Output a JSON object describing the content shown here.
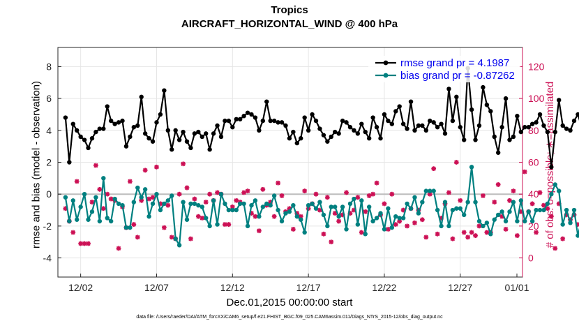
{
  "chart_data": {
    "type": "line",
    "title": "Tropics",
    "subtitle": "AIRCRAFT_HORIZONTAL_WIND @ 400 hPa",
    "xlabel": "Dec.01,2015 00:00:00 start",
    "ylabel_left": "rmse and bias (model - observation)",
    "ylabel_right": "# of obs: o=possible; ∗=assimilated",
    "footer": "data file: /Users/raeder/DAI/ATM_forcXX/CAM6_setup/f.e21.FHIST_BGC.f09_025.CAM6assim.011/Diags_NTrS_2015-12/obs_diag_output.nc",
    "xlim": [
      0.5,
      31.1
    ],
    "ylim_left": [
      -5.2,
      9.2
    ],
    "ylim_right": [
      -12,
      132
    ],
    "x_ticks": [
      2,
      7,
      12,
      17,
      22,
      27,
      32
    ],
    "x_tick_labels": [
      "12/02",
      "12/07",
      "12/12",
      "12/17",
      "12/22",
      "12/27",
      "01/01"
    ],
    "y_ticks_left": [
      -4,
      -2,
      0,
      2,
      4,
      6,
      8
    ],
    "y_ticks_right": [
      0,
      20,
      40,
      60,
      80,
      100,
      120
    ],
    "grid": true,
    "legend": {
      "placement": "top-right",
      "entries": [
        "rmse grand pr = 4.1987",
        "bias grand pr = -0.87262"
      ]
    },
    "x_start": 1,
    "x_step": 0.25,
    "series": [
      {
        "name": "rmse grand pr = 4.1987",
        "color": "#000000",
        "axis": "left",
        "values": [
          4.8,
          2.0,
          4.4,
          4.0,
          3.6,
          3.4,
          2.9,
          3.5,
          3.9,
          4.1,
          4.1,
          5.5,
          4.6,
          4.4,
          4.5,
          4.6,
          3.0,
          3.6,
          4.2,
          4.3,
          6.1,
          3.8,
          3.5,
          3.3,
          4.5,
          5.0,
          6.5,
          4.0,
          2.8,
          4.0,
          3.4,
          3.9,
          3.3,
          2.9,
          3.8,
          3.9,
          3.6,
          3.8,
          2.8,
          3.8,
          4.3,
          3.6,
          4.6,
          4.6,
          4.2,
          4.7,
          4.7,
          4.9,
          5.1,
          5.0,
          4.8,
          4.0,
          4.6,
          5.8,
          4.6,
          4.6,
          4.5,
          4.5,
          4.3,
          3.5,
          3.9,
          3.2,
          3.5,
          4.8,
          4.0,
          5.0,
          4.6,
          4.1,
          3.7,
          3.3,
          3.6,
          3.9,
          3.8,
          4.6,
          4.5,
          4.2,
          4.0,
          3.8,
          4.4,
          3.9,
          3.5,
          4.8,
          4.2,
          3.5,
          5.0,
          4.6,
          4.4,
          5.2,
          5.5,
          4.4,
          4.1,
          5.8,
          4.0,
          4.3,
          4.3,
          4.0,
          4.6,
          4.5,
          4.2,
          4.4,
          3.8,
          6.6,
          4.6,
          6.1,
          4.2,
          3.4,
          7.9,
          5.3,
          3.4,
          4.3,
          6.7,
          5.6,
          5.2,
          3.6,
          2.6,
          4.2,
          6.0,
          3.4,
          3.6,
          4.9,
          3.9,
          4.2,
          4.2,
          4.4,
          4.5,
          5.0,
          4.3,
          3.9,
          1.7,
          3.9,
          5.9,
          4.3,
          4.1,
          4.0,
          4.6,
          5.0,
          4.2,
          3.9,
          4.2,
          4.8,
          4.3,
          6.4,
          5.2
        ]
      },
      {
        "name": "bias grand pr = -0.87262",
        "color": "#008080",
        "axis": "left",
        "values": [
          -0.2,
          -1.7,
          -0.4,
          -1.6,
          -0.8,
          0.0,
          -1.6,
          -1.1,
          -0.2,
          -1.7,
          1.0,
          -1.5,
          -1.7,
          -0.3,
          -0.6,
          -0.7,
          -2.1,
          -2.1,
          -0.5,
          0.4,
          -0.2,
          0.3,
          -1.4,
          -0.6,
          0.0,
          -1.0,
          -0.6,
          -0.4,
          -0.1,
          -2.8,
          -3.2,
          -0.5,
          -1.6,
          -0.6,
          -0.6,
          -0.7,
          -0.8,
          -1.5,
          -2.0,
          -0.4,
          -1.9,
          0.0,
          -0.6,
          -1.0,
          -1.0,
          -1.0,
          -0.6,
          -0.6,
          -2.0,
          -0.7,
          -0.4,
          -1.4,
          -0.8,
          -0.6,
          -0.7,
          -0.1,
          -1.0,
          -1.7,
          -1.2,
          -1.1,
          -0.7,
          -1.4,
          -1.6,
          -2.4,
          -0.7,
          -0.6,
          -0.9,
          -0.5,
          -1.3,
          -2.0,
          -0.8,
          -0.8,
          -1.4,
          -0.8,
          -2.2,
          -0.6,
          -0.3,
          -1.9,
          -0.4,
          -2.5,
          -0.8,
          -1.7,
          -1.5,
          -1.2,
          -2.2,
          -0.9,
          -2.1,
          -1.4,
          -1.5,
          -1.5,
          -0.6,
          -0.9,
          -0.2,
          -1.2,
          -0.5,
          0.2,
          0.2,
          0.2,
          -1.0,
          -2.0,
          -0.5,
          -2.0,
          -1.0,
          -0.9,
          -0.9,
          -1.3,
          -0.5,
          1.7,
          -0.5,
          -1.7,
          -2.0,
          -1.8,
          -2.5,
          -1.6,
          -1.3,
          -1.1,
          -1.7,
          -1.1,
          -0.5,
          -1.7,
          -0.4,
          -1.7,
          -1.1,
          -1.7,
          -1.0,
          -1.0,
          -1.0,
          -0.6,
          0.0,
          0.6,
          0.2,
          -1.9,
          -1.0,
          -1.8,
          -1.0,
          -2.6,
          -1.6,
          -2.2,
          -1.3,
          -1.6,
          -1.2,
          -4.2,
          -1.3
        ]
      },
      {
        "name": "assimilated obs count",
        "color": "#cc1155",
        "axis": "right",
        "values": [
          31,
          23,
          16,
          48,
          9,
          9,
          9,
          35,
          58,
          43,
          31,
          40,
          37,
          36,
          6,
          32,
          19,
          48,
          21,
          13,
          36,
          55,
          37,
          38,
          57,
          34,
          19,
          33,
          13,
          12,
          40,
          59,
          44,
          12,
          37,
          26,
          25,
          35,
          40,
          36,
          41,
          40,
          21,
          21,
          32,
          36,
          35,
          41,
          42,
          28,
          26,
          17,
          43,
          33,
          35,
          26,
          47,
          39,
          29,
          31,
          18,
          28,
          26,
          42,
          31,
          34,
          40,
          30,
          15,
          38,
          10,
          28,
          23,
          27,
          41,
          28,
          30,
          38,
          16,
          29,
          39,
          40,
          47,
          27,
          34,
          18,
          40,
          21,
          23,
          30,
          20,
          31,
          22,
          30,
          24,
          13,
          40,
          56,
          15,
          25,
          34,
          41,
          12,
          60,
          36,
          16,
          13,
          16,
          14,
          20,
          39,
          16,
          16,
          35,
          46,
          26,
          18,
          36,
          42,
          14,
          29,
          54,
          29,
          34,
          16,
          41,
          33,
          31,
          26,
          6,
          34,
          12,
          27,
          24,
          27,
          21,
          18,
          27,
          20,
          32,
          13,
          13,
          1,
          2,
          1
        ]
      }
    ]
  }
}
